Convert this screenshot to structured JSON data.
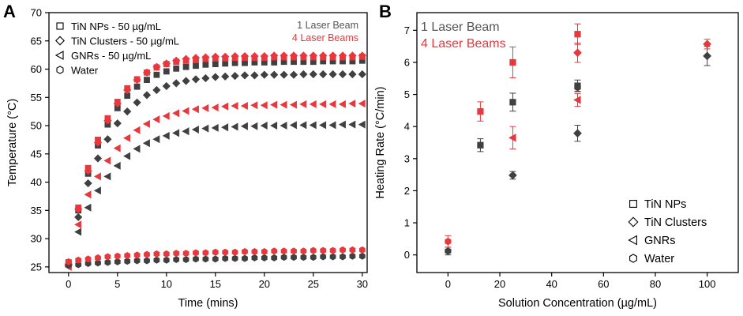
{
  "colors": {
    "laser1": "#404040",
    "laser4": "#e8383d",
    "axis": "#000000"
  },
  "chart_data": [
    {
      "panel_label": "A",
      "type": "scatter",
      "xlabel": "Time (mins)",
      "ylabel": "Temperature (°C)",
      "xlim": [
        -2,
        30.5
      ],
      "ylim": [
        24,
        70
      ],
      "xticks": [
        0,
        5,
        10,
        15,
        20,
        25,
        30
      ],
      "yticks": [
        25,
        30,
        35,
        40,
        45,
        50,
        55,
        60,
        65,
        70
      ],
      "legend": [
        "TiN NPs - 50 µg/mL",
        "TiN Clusters - 50 µg/mL",
        "GNRs - 50 µg/mL",
        "Water"
      ],
      "laser_legend": [
        "1 Laser Beam",
        "4 Laser Beams"
      ],
      "x": [
        0,
        1,
        2,
        3,
        4,
        5,
        6,
        7,
        8,
        9,
        10,
        11,
        12,
        13,
        14,
        15,
        16,
        17,
        18,
        19,
        20,
        21,
        22,
        23,
        24,
        25,
        26,
        27,
        28,
        29,
        30
      ],
      "series": [
        {
          "name": "TiN NPs - 50 µg/mL (1 Laser Beam)",
          "marker": "square",
          "laser": 1,
          "values": [
            25.8,
            35.0,
            41.5,
            46.5,
            50.2,
            53.1,
            55.3,
            56.9,
            58.1,
            59.0,
            59.6,
            60.1,
            60.4,
            60.6,
            60.8,
            60.9,
            61.0,
            61.1,
            61.1,
            61.2,
            61.2,
            61.2,
            61.3,
            61.3,
            61.3,
            61.3,
            61.4,
            61.4,
            61.4,
            61.4,
            61.5
          ]
        },
        {
          "name": "TiN NPs - 50 µg/mL (4 Laser Beams)",
          "marker": "square",
          "laser": 4,
          "values": [
            25.5,
            35.5,
            42.5,
            47.5,
            51.3,
            54.2,
            56.6,
            58.2,
            59.4,
            60.3,
            60.9,
            61.3,
            61.5,
            61.7,
            61.8,
            61.9,
            61.9,
            62.0,
            62.0,
            62.0,
            62.0,
            62.1,
            62.1,
            62.1,
            62.1,
            62.1,
            62.1,
            62.1,
            62.1,
            62.1,
            62.2
          ]
        },
        {
          "name": "TiN Clusters - 50 µg/mL (1 Laser Beam)",
          "marker": "diamond",
          "laser": 1,
          "values": [
            25.3,
            33.8,
            39.8,
            44.2,
            47.6,
            50.4,
            52.5,
            54.1,
            55.4,
            56.3,
            57.0,
            57.5,
            57.9,
            58.2,
            58.4,
            58.6,
            58.7,
            58.8,
            58.9,
            58.9,
            59.0,
            59.0,
            59.0,
            59.0,
            59.1,
            59.1,
            59.1,
            59.1,
            59.1,
            59.1,
            59.1
          ]
        },
        {
          "name": "TiN Clusters - 50 µg/mL (4 Laser Beams)",
          "marker": "diamond",
          "laser": 4,
          "values": [
            25.5,
            35.2,
            42.0,
            47.0,
            50.9,
            53.9,
            56.3,
            58.1,
            59.4,
            60.4,
            61.0,
            61.5,
            61.8,
            62.0,
            62.1,
            62.2,
            62.2,
            62.3,
            62.3,
            62.3,
            62.3,
            62.4,
            62.4,
            62.4,
            62.4,
            62.4,
            62.4,
            62.4,
            62.4,
            62.4,
            62.4
          ]
        },
        {
          "name": "GNRs - 50 µg/mL (1 Laser Beam)",
          "marker": "triangle-left",
          "laser": 1,
          "values": [
            25.2,
            31.2,
            35.5,
            38.5,
            41.0,
            42.9,
            44.6,
            45.9,
            46.9,
            47.6,
            48.2,
            48.7,
            49.0,
            49.3,
            49.5,
            49.6,
            49.7,
            49.8,
            49.9,
            49.9,
            50.0,
            50.0,
            50.0,
            50.1,
            50.1,
            50.1,
            50.1,
            50.1,
            50.2,
            50.2,
            50.2
          ]
        },
        {
          "name": "GNRs - 50 µg/mL (4 Laser Beams)",
          "marker": "triangle-left",
          "laser": 4,
          "values": [
            25.0,
            32.5,
            37.8,
            41.0,
            43.8,
            46.0,
            47.8,
            49.2,
            50.3,
            51.1,
            51.7,
            52.2,
            52.6,
            52.9,
            53.1,
            53.2,
            53.4,
            53.5,
            53.5,
            53.6,
            53.6,
            53.7,
            53.7,
            53.7,
            53.8,
            53.8,
            53.8,
            53.8,
            53.8,
            53.9,
            53.9
          ]
        },
        {
          "name": "Water (1 Laser Beam)",
          "marker": "hexagon",
          "laser": 1,
          "values": [
            25.3,
            25.4,
            25.6,
            25.7,
            25.8,
            25.9,
            26.0,
            26.1,
            26.1,
            26.2,
            26.2,
            26.3,
            26.3,
            26.4,
            26.4,
            26.4,
            26.5,
            26.5,
            26.5,
            26.6,
            26.6,
            26.6,
            26.7,
            26.7,
            26.7,
            26.7,
            26.8,
            26.8,
            26.8,
            26.9,
            26.9
          ]
        },
        {
          "name": "Water (4 Laser Beams)",
          "marker": "hexagon",
          "laser": 4,
          "values": [
            25.9,
            26.2,
            26.4,
            26.6,
            26.8,
            26.9,
            27.0,
            27.1,
            27.2,
            27.3,
            27.3,
            27.4,
            27.4,
            27.5,
            27.5,
            27.6,
            27.6,
            27.6,
            27.7,
            27.7,
            27.7,
            27.8,
            27.8,
            27.8,
            27.8,
            27.9,
            27.9,
            27.9,
            28.0,
            28.0,
            28.0
          ]
        }
      ]
    },
    {
      "panel_label": "B",
      "type": "scatter",
      "xlabel": "Solution Concentration (µg/mL)",
      "ylabel": "Heating Rate (°C/min)",
      "xlim": [
        -12,
        112
      ],
      "ylim": [
        -0.55,
        7.55
      ],
      "xticks": [
        0,
        20,
        40,
        60,
        80,
        100
      ],
      "yticks": [
        0,
        1,
        2,
        3,
        4,
        5,
        6,
        7
      ],
      "legend": [
        "TiN NPs",
        "TiN Clusters",
        "GNRs",
        "Water"
      ],
      "laser_legend": [
        "1 Laser Beam",
        "4 Laser Beams"
      ],
      "series": [
        {
          "name": "TiN NPs (1 Laser Beam)",
          "marker": "square",
          "laser": 1,
          "x": [
            12.5,
            25,
            50
          ],
          "values": [
            3.42,
            4.76,
            5.27
          ],
          "errors": [
            0.2,
            0.28,
            0.18
          ]
        },
        {
          "name": "TiN NPs (4 Laser Beams)",
          "marker": "square",
          "laser": 4,
          "x": [
            12.5,
            25,
            50
          ],
          "values": [
            4.47,
            6.0,
            6.88
          ],
          "errors": [
            0.3,
            0.48,
            0.32
          ]
        },
        {
          "name": "TiN Clusters (1 Laser Beam)",
          "marker": "diamond",
          "laser": 1,
          "x": [
            25,
            50,
            100
          ],
          "values": [
            2.48,
            3.79,
            6.2
          ],
          "errors": [
            0.12,
            0.25,
            0.3
          ]
        },
        {
          "name": "TiN Clusters (4 Laser Beams)",
          "marker": "diamond",
          "laser": 4,
          "x": [
            50,
            100
          ],
          "values": [
            6.3,
            6.57
          ],
          "errors": [
            0.3,
            0.15
          ]
        },
        {
          "name": "GNRs (4 Laser Beams)",
          "marker": "triangle-left",
          "laser": 4,
          "x": [
            25,
            50
          ],
          "values": [
            3.65,
            4.83
          ],
          "errors": [
            0.35,
            0.2
          ]
        },
        {
          "name": "Water (1 Laser Beam)",
          "marker": "hexagon",
          "laser": 1,
          "x": [
            0,
            50
          ],
          "values": [
            0.12,
            5.22
          ],
          "errors": [
            0.12,
            0.12
          ]
        },
        {
          "name": "Water (4 Laser Beams)",
          "marker": "hexagon",
          "laser": 4,
          "x": [
            0
          ],
          "values": [
            0.42
          ],
          "errors": [
            0.18
          ]
        }
      ]
    }
  ]
}
